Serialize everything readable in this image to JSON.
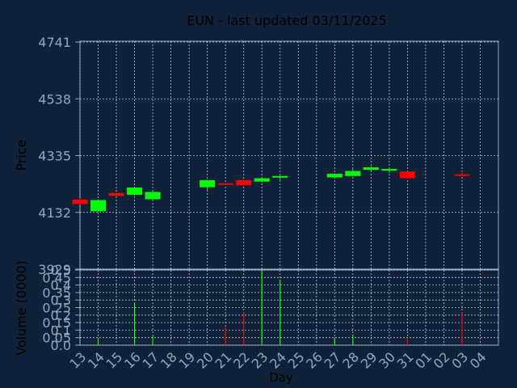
{
  "chart_data": [
    {
      "type": "candlestick",
      "title": "EUN - last updated 03/11/2025",
      "ylabel": "Price",
      "ylim": [
        3929,
        4741
      ],
      "yticks": [
        "3929",
        "4132",
        "4335",
        "4538",
        "4741"
      ],
      "x_categories": [
        "13",
        "14",
        "15",
        "16",
        "17",
        "18",
        "19",
        "20",
        "21",
        "22",
        "23",
        "24",
        "25",
        "26",
        "27",
        "28",
        "29",
        "30",
        "31",
        "01",
        "02",
        "03",
        "04"
      ],
      "candles": [
        {
          "day": "13",
          "open": 4178,
          "close": 4162,
          "high": 4182,
          "low": 4160
        },
        {
          "day": "14",
          "open": 4136,
          "close": 4176,
          "high": 4178,
          "low": 4134
        },
        {
          "day": "15",
          "open": 4201,
          "close": 4191,
          "high": 4204,
          "low": 4189
        },
        {
          "day": "16",
          "open": 4195,
          "close": 4221,
          "high": 4224,
          "low": 4192
        },
        {
          "day": "17",
          "open": 4179,
          "close": 4205,
          "high": 4207,
          "low": 4176
        },
        {
          "day": "20",
          "open": 4222,
          "close": 4247,
          "high": 4249,
          "low": 4212
        },
        {
          "day": "21",
          "open": 4236,
          "close": 4233,
          "high": 4238,
          "low": 4231
        },
        {
          "day": "22",
          "open": 4247,
          "close": 4229,
          "high": 4251,
          "low": 4227
        },
        {
          "day": "23",
          "open": 4242,
          "close": 4254,
          "high": 4257,
          "low": 4239
        },
        {
          "day": "24",
          "open": 4259,
          "close": 4262,
          "high": 4264,
          "low": 4245
        },
        {
          "day": "27",
          "open": 4257,
          "close": 4270,
          "high": 4272,
          "low": 4255
        },
        {
          "day": "28",
          "open": 4262,
          "close": 4280,
          "high": 4287,
          "low": 4260
        },
        {
          "day": "29",
          "open": 4284,
          "close": 4293,
          "high": 4297,
          "low": 4282
        },
        {
          "day": "30",
          "open": 4283,
          "close": 4287,
          "high": 4292,
          "low": 4273
        },
        {
          "day": "31",
          "open": 4278,
          "close": 4254,
          "high": 4280,
          "low": 4252
        },
        {
          "day": "03",
          "open": 4268,
          "close": 4263,
          "high": 4278,
          "low": 4261
        }
      ],
      "up_color": "#00ff00",
      "down_color": "#ff0000",
      "grid": true
    },
    {
      "type": "bar",
      "ylabel": "Volume (0000)",
      "xlabel": "Day",
      "ylim": [
        0,
        0.5
      ],
      "yticks": [
        "0.0",
        "0.05",
        "0.1",
        "0.15",
        "0.2",
        "0.25",
        "0.3",
        "0.35",
        "0.4",
        "0.45",
        "0.5"
      ],
      "x_categories": [
        "13",
        "14",
        "15",
        "16",
        "17",
        "18",
        "19",
        "20",
        "21",
        "22",
        "23",
        "24",
        "25",
        "26",
        "27",
        "28",
        "29",
        "30",
        "31",
        "01",
        "02",
        "03",
        "04"
      ],
      "bars": [
        {
          "day": "14",
          "value": 0.04,
          "dir": "up"
        },
        {
          "day": "16",
          "value": 0.28,
          "dir": "up"
        },
        {
          "day": "17",
          "value": 0.06,
          "dir": "up"
        },
        {
          "day": "21",
          "value": 0.12,
          "dir": "down"
        },
        {
          "day": "22",
          "value": 0.22,
          "dir": "down"
        },
        {
          "day": "23",
          "value": 0.5,
          "dir": "up"
        },
        {
          "day": "24",
          "value": 0.43,
          "dir": "up"
        },
        {
          "day": "27",
          "value": 0.05,
          "dir": "up"
        },
        {
          "day": "28",
          "value": 0.07,
          "dir": "up"
        },
        {
          "day": "31",
          "value": 0.05,
          "dir": "down"
        },
        {
          "day": "03",
          "value": 0.22,
          "dir": "down"
        }
      ],
      "grid": true
    }
  ],
  "colors": {
    "background": "#0f223a",
    "axis_text": "#8fa8c8",
    "title_text": "#ffff00",
    "grid": "#c8c8c8",
    "axis_line": "#8fa8c8"
  }
}
